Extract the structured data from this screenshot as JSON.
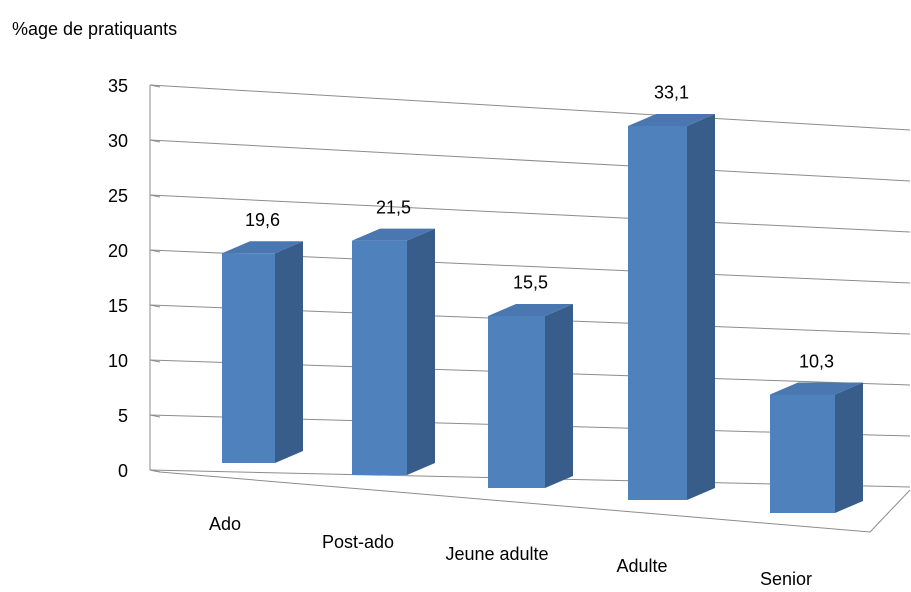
{
  "chart_data": {
    "type": "bar3d",
    "title": "%age de pratiquants",
    "categories": [
      "Ado",
      "Post-ado",
      "Jeune adulte",
      "Adulte",
      "Senior"
    ],
    "values": [
      19.6,
      21.5,
      15.5,
      33.1,
      10.3
    ],
    "value_labels": [
      "19,6",
      "21,5",
      "15,5",
      "33,1",
      "10,3"
    ],
    "color": "#4f81bd",
    "ylim": [
      0,
      35
    ],
    "yticks": [
      0,
      5,
      10,
      15,
      20,
      25,
      30,
      35
    ],
    "grid": true
  }
}
